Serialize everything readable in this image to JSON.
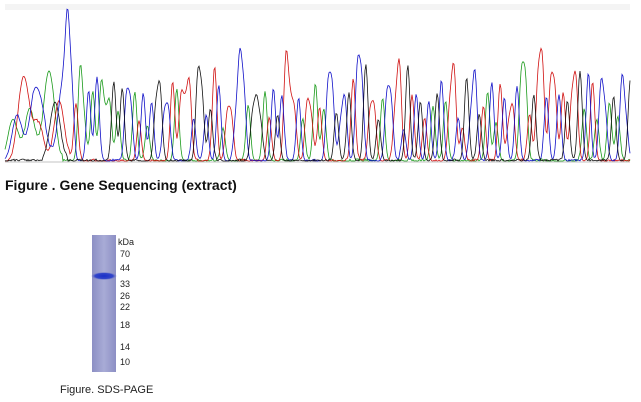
{
  "sequencing": {
    "caption": "Figure . Gene Sequencing (extract)"
  },
  "gel": {
    "unit": "kDa",
    "markers": [
      "70",
      "44",
      "33",
      "26",
      "22",
      "18",
      "14",
      "10"
    ],
    "caption": "Figure. SDS-PAGE"
  }
}
